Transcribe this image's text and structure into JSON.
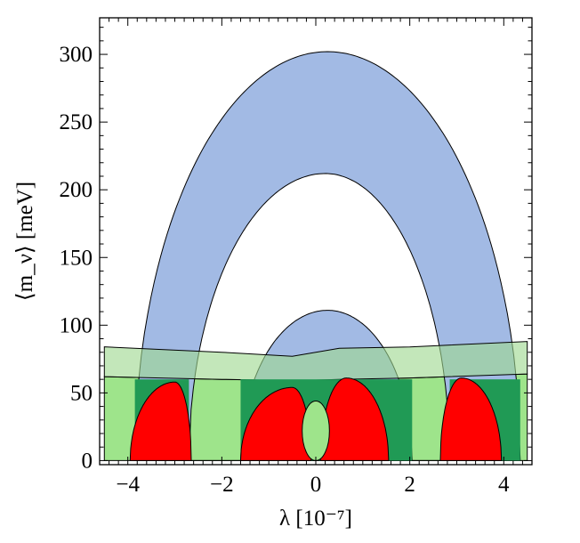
{
  "chart_data": {
    "type": "area",
    "xlabel": "λ [10⁻⁷]",
    "ylabel": "⟨m_ν⟩ [meV]",
    "xlim": [
      -4.6,
      4.6
    ],
    "ylim": [
      -3,
      327
    ],
    "x_ticks": [
      -4,
      -2,
      0,
      2,
      4
    ],
    "y_ticks": [
      0,
      50,
      100,
      150,
      200,
      250,
      300
    ],
    "x_tick_labels": [
      "−4",
      "−2",
      "0",
      "2",
      "4"
    ],
    "y_tick_labels": [
      "0",
      "50",
      "100",
      "150",
      "200",
      "250",
      "300"
    ],
    "grid": false,
    "colors": {
      "blue_band": "#a2bae4",
      "light_green_band": "#9ee48b",
      "translucent_green_band": "#9ed88f",
      "dark_green": "#209a55",
      "red": "#ff0000",
      "overlap_gray": "#787c70"
    },
    "regions": [
      {
        "name": "blue_arch_band",
        "outer_arc": {
          "x_left": -3.85,
          "x_right": 4.35,
          "x_peak": 0.25,
          "peak": 302
        },
        "inner_arc": {
          "x_left": -2.7,
          "x_right": 2.85,
          "x_peak": 0.2,
          "peak": 212
        }
      },
      {
        "name": "blue_small_arch",
        "x_left": -1.6,
        "x_right": 2.05,
        "x_peak": 0.25,
        "peak": 111
      },
      {
        "name": "green_band_lower",
        "x": [
          -4.5,
          -2,
          0,
          2,
          4.5
        ],
        "lower": [
          0,
          0,
          0,
          0,
          0
        ],
        "upper": [
          62,
          60,
          59,
          61,
          64
        ]
      },
      {
        "name": "green_band_upper",
        "x": [
          -4.5,
          -2,
          -0.5,
          0.5,
          2,
          4.5
        ],
        "lower": [
          62,
          60,
          59,
          60,
          61,
          64
        ],
        "upper": [
          84,
          80,
          77,
          83,
          84,
          88
        ]
      },
      {
        "name": "red_lobes",
        "lobes": [
          {
            "x_left": -3.95,
            "x_right": -2.65,
            "x_peak": -3.0,
            "peak": 58
          },
          {
            "x_left": -1.6,
            "x_right": -0.1,
            "x_peak": -0.5,
            "peak": 54
          },
          {
            "x_left": 0.1,
            "x_right": 1.55,
            "x_peak": 0.65,
            "peak": 61
          },
          {
            "x_left": 2.65,
            "x_right": 3.95,
            "x_peak": 3.1,
            "peak": 61
          }
        ],
        "inner_hole": {
          "x_left": -0.28,
          "x_right": 0.3,
          "x_center": 0.0,
          "top": 44,
          "bottom": 0
        }
      }
    ]
  }
}
